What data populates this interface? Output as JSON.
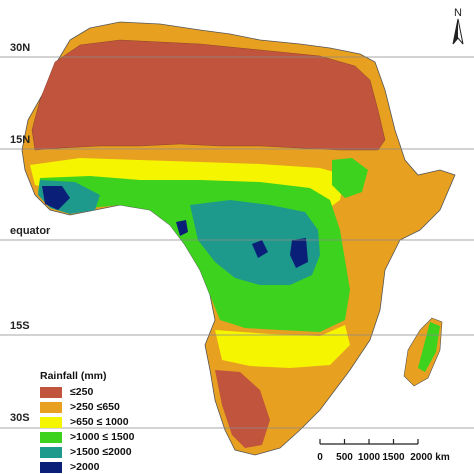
{
  "map": {
    "lat_lines": [
      {
        "label": "30N"
      },
      {
        "label": "15N"
      },
      {
        "label": "equator"
      },
      {
        "label": "15S"
      },
      {
        "label": "30S"
      }
    ],
    "north_label": "N",
    "legend": {
      "title": "Rainfall (mm)",
      "items": [
        {
          "label": "≤250",
          "color": "#c0543c"
        },
        {
          "label": ">250 ≤650",
          "color": "#e8a020"
        },
        {
          "label": ">650 ≤ 1000",
          "color": "#f5f500"
        },
        {
          "label": ">1000 ≤ 1500",
          "color": "#3cd21e"
        },
        {
          "label": ">1500 ≤2000",
          "color": "#1e9a8c"
        },
        {
          "label": ">2000",
          "color": "#0a1f78"
        }
      ]
    },
    "scale": {
      "ticks": [
        "0",
        "500",
        "1000",
        "1500",
        "2000 km"
      ]
    },
    "colors": {
      "arid": "#c0543c",
      "semiarid": "#e8a020",
      "subhumid": "#f5f500",
      "humid": "#3cd21e",
      "wet": "#1e9a8c",
      "verywet": "#0a1f78",
      "gridline": "#8a8a8a",
      "border": "#555555"
    }
  }
}
